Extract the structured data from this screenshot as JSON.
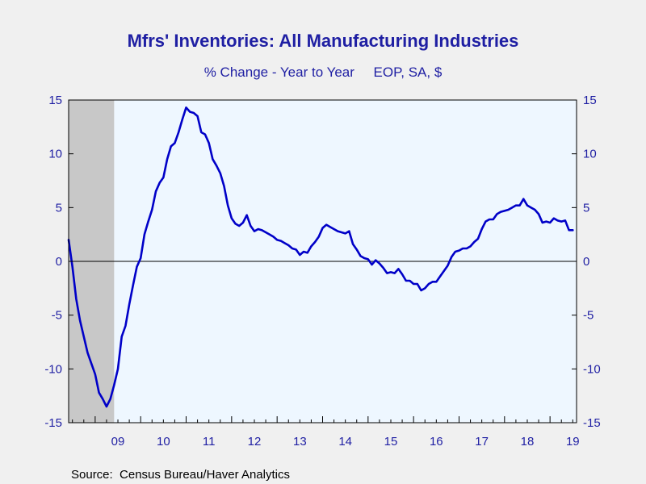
{
  "chart_data": {
    "type": "line",
    "title": "Mfrs' Inventories: All Manufacturing Industries",
    "subtitle": "% Change - Year to Year     EOP, SA, $",
    "source": "Source:  Census Bureau/Haver Analytics",
    "x_tick_labels": [
      "09",
      "10",
      "11",
      "12",
      "13",
      "14",
      "15",
      "16",
      "17",
      "18",
      "19"
    ],
    "x_tick_years": [
      2009,
      2010,
      2011,
      2012,
      2013,
      2014,
      2015,
      2016,
      2017,
      2018,
      2019
    ],
    "xlim": [
      "2008-06",
      "2019-08"
    ],
    "ylim": [
      -15,
      15
    ],
    "y_ticks": [
      15,
      10,
      5,
      0,
      -5,
      -10,
      -15
    ],
    "recession": {
      "start": "2008-06",
      "end": "2009-06"
    },
    "colors": {
      "line": "#0000c8",
      "text": "#1f1fa3",
      "plot_bg": "#eef7ff",
      "recession": "#c8c8c8",
      "page_bg": "#f0f0f0"
    },
    "series": [
      {
        "x": [
          "2008-06",
          "2008-07",
          "2008-08",
          "2008-09",
          "2008-10",
          "2008-11",
          "2008-12",
          "2009-01",
          "2009-02",
          "2009-03",
          "2009-04",
          "2009-05",
          "2009-06",
          "2009-07",
          "2009-08",
          "2009-09",
          "2009-10",
          "2009-11",
          "2009-12",
          "2010-01",
          "2010-02",
          "2010-03",
          "2010-04",
          "2010-05",
          "2010-06",
          "2010-07",
          "2010-08",
          "2010-09",
          "2010-10",
          "2010-11",
          "2010-12",
          "2011-01",
          "2011-02",
          "2011-03",
          "2011-04",
          "2011-05",
          "2011-06",
          "2011-07",
          "2011-08",
          "2011-09",
          "2011-10",
          "2011-11",
          "2011-12",
          "2012-01",
          "2012-02",
          "2012-03",
          "2012-04",
          "2012-05",
          "2012-06",
          "2012-07",
          "2012-08",
          "2012-09",
          "2012-10",
          "2012-11",
          "2012-12",
          "2013-01",
          "2013-02",
          "2013-03",
          "2013-04",
          "2013-05",
          "2013-06",
          "2013-07",
          "2013-08",
          "2013-09",
          "2013-10",
          "2013-11",
          "2013-12",
          "2014-01",
          "2014-02",
          "2014-03",
          "2014-04",
          "2014-05",
          "2014-06",
          "2014-07",
          "2014-08",
          "2014-09",
          "2014-10",
          "2014-11",
          "2014-12",
          "2015-01",
          "2015-02",
          "2015-03",
          "2015-04",
          "2015-05",
          "2015-06",
          "2015-07",
          "2015-08",
          "2015-09",
          "2015-10",
          "2015-11",
          "2015-12",
          "2016-01",
          "2016-02",
          "2016-03",
          "2016-04",
          "2016-05",
          "2016-06",
          "2016-07",
          "2016-08",
          "2016-09",
          "2016-10",
          "2016-11",
          "2016-12",
          "2017-01",
          "2017-02",
          "2017-03",
          "2017-04",
          "2017-05",
          "2017-06",
          "2017-07",
          "2017-08",
          "2017-09",
          "2017-10",
          "2017-11",
          "2017-12",
          "2018-01",
          "2018-02",
          "2018-03",
          "2018-04",
          "2018-05",
          "2018-06",
          "2018-07",
          "2018-08",
          "2018-09",
          "2018-10",
          "2018-11",
          "2018-12",
          "2019-01",
          "2019-02",
          "2019-03",
          "2019-04",
          "2019-05",
          "2019-06",
          "2019-07"
        ],
        "values": [
          2.0,
          -0.5,
          -3.5,
          -5.5,
          -7.0,
          -8.5,
          -9.5,
          -10.5,
          -12.2,
          -12.8,
          -13.5,
          -12.8,
          -11.5,
          -10.0,
          -7.0,
          -6.0,
          -4.0,
          -2.2,
          -0.5,
          0.3,
          2.5,
          3.7,
          4.8,
          6.5,
          7.3,
          7.8,
          9.5,
          10.7,
          11.0,
          12.0,
          13.2,
          14.3,
          13.9,
          13.8,
          13.5,
          12.0,
          11.8,
          11.0,
          9.5,
          8.9,
          8.2,
          7.0,
          5.2,
          4.0,
          3.5,
          3.3,
          3.6,
          4.3,
          3.3,
          2.8,
          3.0,
          2.9,
          2.7,
          2.5,
          2.3,
          2.0,
          1.9,
          1.7,
          1.5,
          1.2,
          1.1,
          0.6,
          0.9,
          0.8,
          1.4,
          1.8,
          2.3,
          3.1,
          3.4,
          3.2,
          3.0,
          2.8,
          2.7,
          2.6,
          2.8,
          1.6,
          1.1,
          0.5,
          0.3,
          0.2,
          -0.3,
          0.1,
          -0.2,
          -0.6,
          -1.1,
          -1.0,
          -1.1,
          -0.7,
          -1.2,
          -1.8,
          -1.8,
          -2.1,
          -2.1,
          -2.7,
          -2.5,
          -2.1,
          -1.9,
          -1.9,
          -1.4,
          -0.9,
          -0.4,
          0.4,
          0.9,
          1.0,
          1.2,
          1.2,
          1.4,
          1.8,
          2.1,
          3.0,
          3.7,
          3.9,
          3.9,
          4.4,
          4.6,
          4.7,
          4.8,
          5.0,
          5.2,
          5.2,
          5.8,
          5.2,
          5.0,
          4.8,
          4.4,
          3.6,
          3.7,
          3.6,
          4.0,
          3.8,
          3.7,
          3.8,
          2.9,
          2.9
        ]
      }
    ]
  }
}
